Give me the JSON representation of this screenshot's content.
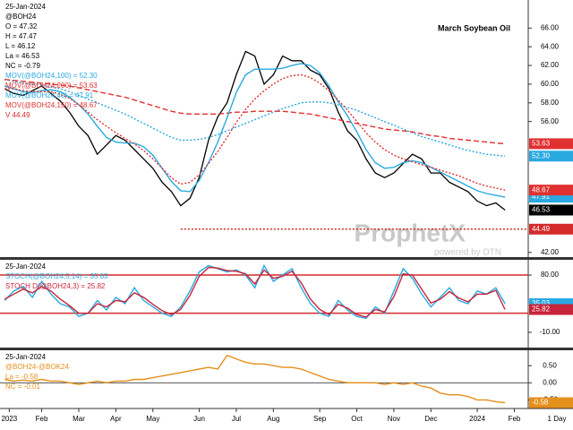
{
  "chart_data": [
    {
      "type": "line",
      "title": "March Soybean Oil",
      "date": "25-Jan-2024",
      "symbol": "@BOH24",
      "quote": [
        "O = 47.32",
        "H = 47.47",
        "L = 46.12",
        "La = 46.53",
        "NC = -0.79"
      ],
      "ylim": [
        41.5,
        69.0
      ],
      "yticks": [
        {
          "value": 66,
          "label": "66.00"
        },
        {
          "value": 64,
          "label": "64.00"
        },
        {
          "value": 62,
          "label": "62.00"
        },
        {
          "value": 60,
          "label": "60.00"
        },
        {
          "value": 58,
          "label": "58.00"
        },
        {
          "value": 56,
          "label": "56.00"
        },
        {
          "value": 42,
          "label": "42.00"
        }
      ],
      "support": {
        "name": "V 44.49",
        "value": 44.49,
        "label": "44.49",
        "color": "#d42a2a"
      },
      "series": [
        {
          "name": "@BOH24",
          "color": "#000000",
          "style": "solid",
          "last_label": "46.53",
          "values": [
            59.5,
            59.0,
            58.8,
            59.3,
            59.8,
            59.0,
            58.2,
            57.0,
            55.5,
            54.5,
            52.5,
            53.5,
            54.5,
            54.0,
            53.0,
            52.0,
            51.0,
            49.5,
            48.5,
            47.0,
            47.8,
            50.0,
            54.0,
            56.5,
            58.0,
            61.0,
            63.5,
            63.0,
            60.0,
            61.0,
            63.0,
            62.5,
            62.5,
            61.5,
            61.0,
            59.5,
            57.0,
            55.0,
            54.0,
            52.0,
            50.5,
            50.0,
            50.5,
            51.5,
            52.5,
            52.0,
            50.5,
            50.5,
            49.5,
            49.0,
            48.5,
            47.5,
            47.0,
            47.3,
            46.53
          ]
        },
        {
          "name": "MOV(@BOH24,100) = 52.30",
          "color": "#2aa8e0",
          "style": "dotted",
          "last_label": "52.30",
          "values": [
            60.5,
            60.3,
            60.1,
            60.0,
            59.9,
            59.7,
            59.5,
            59.2,
            58.8,
            58.4,
            58.0,
            57.6,
            57.2,
            56.8,
            56.3,
            55.8,
            55.3,
            54.8,
            54.3,
            54.0,
            54.0,
            54.1,
            54.3,
            54.6,
            55.0,
            55.4,
            55.8,
            56.2,
            56.6,
            57.0,
            57.4,
            57.7,
            58.0,
            58.1,
            58.1,
            58.0,
            57.8,
            57.5,
            57.2,
            56.8,
            56.4,
            56.0,
            55.6,
            55.2,
            54.8,
            54.4,
            54.1,
            53.8,
            53.5,
            53.2,
            52.9,
            52.7,
            52.5,
            52.4,
            52.3
          ]
        },
        {
          "name": "MOV(@BOH24,200) = 53.63",
          "color": "#e03030",
          "style": "dashed",
          "last_label": "53.63",
          "values": [
            60.5,
            60.4,
            60.3,
            60.2,
            60.1,
            60.0,
            59.9,
            59.8,
            59.6,
            59.4,
            59.2,
            59.0,
            58.8,
            58.6,
            58.3,
            58.0,
            57.7,
            57.4,
            57.1,
            56.9,
            56.8,
            56.8,
            56.8,
            56.8,
            56.9,
            57.0,
            57.0,
            57.1,
            57.1,
            57.1,
            57.1,
            57.0,
            56.9,
            56.8,
            56.6,
            56.4,
            56.2,
            56.0,
            55.8,
            55.6,
            55.4,
            55.2,
            55.1,
            55.0,
            54.9,
            54.7,
            54.5,
            54.4,
            54.2,
            54.1,
            54.0,
            53.9,
            53.8,
            53.7,
            53.63
          ]
        },
        {
          "name": "MOV(@BOH24,40) = 47.91",
          "color": "#29a9e1",
          "style": "solid",
          "last_label": "47.91",
          "values": [
            59.8,
            59.5,
            59.2,
            59.1,
            59.3,
            59.4,
            59.2,
            58.6,
            57.8,
            56.8,
            55.5,
            54.3,
            53.8,
            53.7,
            53.7,
            53.3,
            52.4,
            51.0,
            49.6,
            48.6,
            48.5,
            49.7,
            51.6,
            53.8,
            56.4,
            59.1,
            61.0,
            61.6,
            61.6,
            61.6,
            61.7,
            62.0,
            62.2,
            62.0,
            61.2,
            59.8,
            58.1,
            56.6,
            54.9,
            53.0,
            51.6,
            51.0,
            51.1,
            51.6,
            51.8,
            51.6,
            51.1,
            50.6,
            50.1,
            49.6,
            49.1,
            48.6,
            48.3,
            48.1,
            47.91
          ]
        },
        {
          "name": "MOV(@BOH24,150) = 48.67",
          "color": "#e03030",
          "style": "dotted",
          "last_label": "48.67",
          "values": [
            59.5,
            59.5,
            59.3,
            59.2,
            59.2,
            59.2,
            58.9,
            58.5,
            57.8,
            57.0,
            56.2,
            55.5,
            54.8,
            54.2,
            53.6,
            52.9,
            52.0,
            51.0,
            50.0,
            49.3,
            49.5,
            50.3,
            51.5,
            52.8,
            54.3,
            55.9,
            57.3,
            58.4,
            59.3,
            60.0,
            60.6,
            60.9,
            61.0,
            60.7,
            60.1,
            59.3,
            58.3,
            57.2,
            56.0,
            54.8,
            53.8,
            53.0,
            52.4,
            52.0,
            51.7,
            51.4,
            51.1,
            50.8,
            50.5,
            50.2,
            49.8,
            49.4,
            49.1,
            48.9,
            48.67
          ]
        }
      ]
    },
    {
      "type": "line",
      "date": "25-Jan-2024",
      "ylim": [
        -34,
        104
      ],
      "yticks": [
        {
          "value": 80,
          "label": "80.00"
        },
        {
          "value": -10,
          "label": "-10.00"
        }
      ],
      "levels": [
        80,
        20
      ],
      "series": [
        {
          "name": "STOCH(@BOH24,5,14) = 35.03",
          "color": "#29a9e1",
          "style": "solid",
          "last_label": "35.03",
          "values": [
            40,
            55,
            62,
            45,
            70,
            50,
            35,
            30,
            15,
            20,
            40,
            25,
            45,
            35,
            60,
            40,
            30,
            20,
            15,
            30,
            55,
            85,
            95,
            90,
            85,
            88,
            80,
            60,
            95,
            70,
            80,
            90,
            60,
            35,
            20,
            15,
            40,
            25,
            15,
            12,
            30,
            20,
            55,
            90,
            75,
            50,
            30,
            45,
            60,
            40,
            35,
            55,
            50,
            60,
            35.03
          ]
        },
        {
          "name": "STOCH D(@BOH24,3) = 25.82",
          "color": "#c8243a",
          "style": "solid",
          "last_label": "25.82",
          "values": [
            42,
            50,
            58,
            52,
            62,
            55,
            42,
            32,
            20,
            20,
            35,
            30,
            40,
            38,
            52,
            45,
            34,
            24,
            18,
            26,
            48,
            78,
            92,
            91,
            87,
            86,
            82,
            66,
            88,
            75,
            78,
            86,
            68,
            42,
            26,
            18,
            34,
            28,
            18,
            14,
            26,
            22,
            46,
            82,
            80,
            58,
            36,
            42,
            54,
            44,
            38,
            50,
            50,
            56,
            25.82
          ]
        }
      ]
    },
    {
      "type": "line",
      "date": "25-Jan-2024",
      "quote": [
        "La = -0.58",
        "NC = -0.01"
      ],
      "ylim": [
        -0.75,
        0.95
      ],
      "yticks": [
        {
          "value": 0.5,
          "label": "0.50"
        },
        {
          "value": 0,
          "label": "0.00"
        },
        {
          "value": -0.5,
          "label": "-0.50"
        }
      ],
      "levels": [
        0
      ],
      "series": [
        {
          "name": "@BOH24-@BOK24",
          "color": "#e4901c",
          "style": "solid",
          "last_label": "-0.58",
          "values": [
            0.1,
            0.05,
            0.08,
            0.05,
            0.1,
            0.05,
            0.05,
            0.0,
            -0.05,
            0.0,
            0.05,
            0.0,
            0.05,
            0.05,
            0.1,
            0.1,
            0.15,
            0.2,
            0.25,
            0.3,
            0.35,
            0.4,
            0.45,
            0.4,
            0.8,
            0.7,
            0.6,
            0.55,
            0.55,
            0.5,
            0.45,
            0.45,
            0.4,
            0.3,
            0.2,
            0.1,
            0.05,
            0.0,
            0.0,
            0.0,
            0.0,
            -0.05,
            0.0,
            -0.05,
            0.0,
            -0.1,
            -0.15,
            -0.3,
            -0.35,
            -0.35,
            -0.4,
            -0.5,
            -0.5,
            -0.55,
            -0.58
          ]
        }
      ]
    }
  ],
  "x_axis": {
    "xlim": [
      -0.5,
      56.5
    ],
    "period": "1 Day",
    "xticks": [
      {
        "value": 0.5,
        "label": "2023"
      },
      {
        "value": 4,
        "label": "Feb"
      },
      {
        "value": 8,
        "label": "Mar"
      },
      {
        "value": 12,
        "label": "Apr"
      },
      {
        "value": 16,
        "label": "May"
      },
      {
        "value": 21,
        "label": "Jun"
      },
      {
        "value": 25,
        "label": "Jul"
      },
      {
        "value": 29,
        "label": "Aug"
      },
      {
        "value": 34,
        "label": "Sep"
      },
      {
        "value": 38,
        "label": "Oct"
      },
      {
        "value": 42,
        "label": "Nov"
      },
      {
        "value": 46,
        "label": "Dec"
      },
      {
        "value": 51,
        "label": "2024"
      },
      {
        "value": 55,
        "label": "Feb"
      }
    ]
  },
  "watermark": {
    "brand": "ProphetX",
    "tagline": "powered by DTN"
  }
}
